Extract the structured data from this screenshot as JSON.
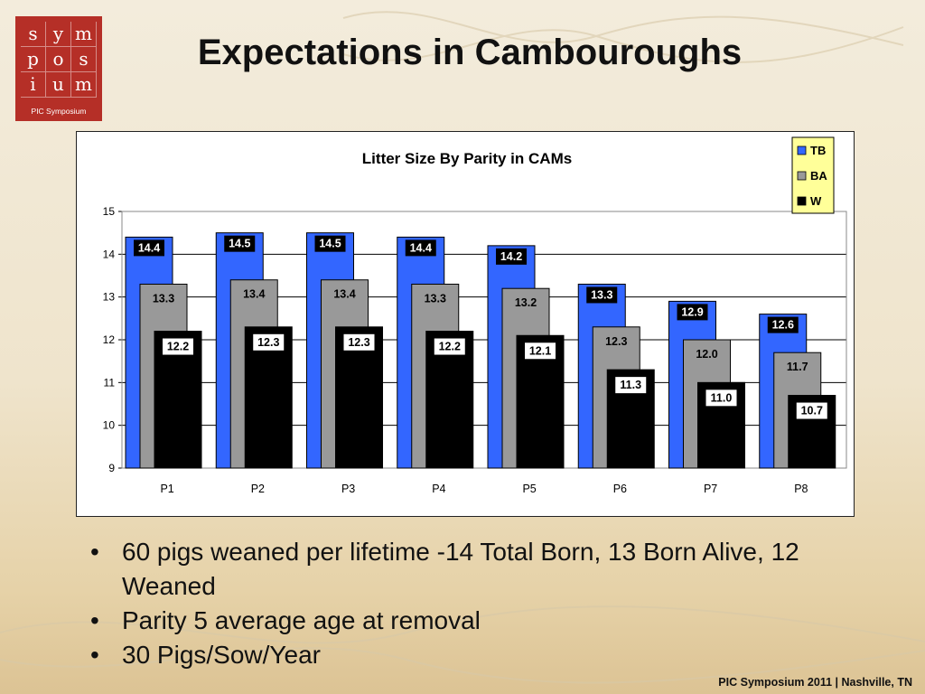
{
  "logo": {
    "letters": [
      "s",
      "y",
      "m",
      "p",
      "o",
      "s",
      "i",
      "u",
      "m"
    ],
    "caption": "PIC Symposium"
  },
  "slide": {
    "title": "Expectations in Cambouroughs",
    "bullets": [
      "60 pigs weaned per lifetime -14 Total Born, 13 Born Alive, 12 Weaned",
      "Parity 5 average age at removal",
      "30 Pigs/Sow/Year"
    ],
    "footer": "PIC Symposium 2011 | Nashville, TN"
  },
  "chart_data": {
    "type": "bar",
    "title": "Litter Size By Parity in CAMs",
    "xlabel": "",
    "ylabel": "",
    "categories": [
      "P1",
      "P2",
      "P3",
      "P4",
      "P5",
      "P6",
      "P7",
      "P8"
    ],
    "series": [
      {
        "name": "TB",
        "color": "#3366ff",
        "values": [
          14.4,
          14.5,
          14.5,
          14.4,
          14.2,
          13.3,
          12.9,
          12.6
        ]
      },
      {
        "name": "BA",
        "color": "#999999",
        "values": [
          13.3,
          13.4,
          13.4,
          13.3,
          13.2,
          12.3,
          12.0,
          11.7
        ]
      },
      {
        "name": "W",
        "color": "#000000",
        "values": [
          12.2,
          12.3,
          12.3,
          12.2,
          12.1,
          11.3,
          11.0,
          10.7
        ]
      }
    ],
    "data_labels": [
      [
        "14.4",
        "14.5",
        "14.5",
        "14.4",
        "14.2",
        "13.3",
        "12.9",
        "12.6"
      ],
      [
        "13.3",
        "13.4",
        "13.4",
        "13.3",
        "13.2",
        "12.3",
        "12.0",
        "11.7"
      ],
      [
        "12.2",
        "12.3",
        "12.3",
        "12.2",
        "12.1",
        "11.3",
        "11.0",
        "10.7"
      ]
    ],
    "ylim": [
      9,
      15
    ],
    "yticks": [
      "9",
      "10",
      "11",
      "12",
      "13",
      "14",
      "15"
    ],
    "grid": true,
    "legend_position": "top-right",
    "legend_background": "#ffff99"
  }
}
